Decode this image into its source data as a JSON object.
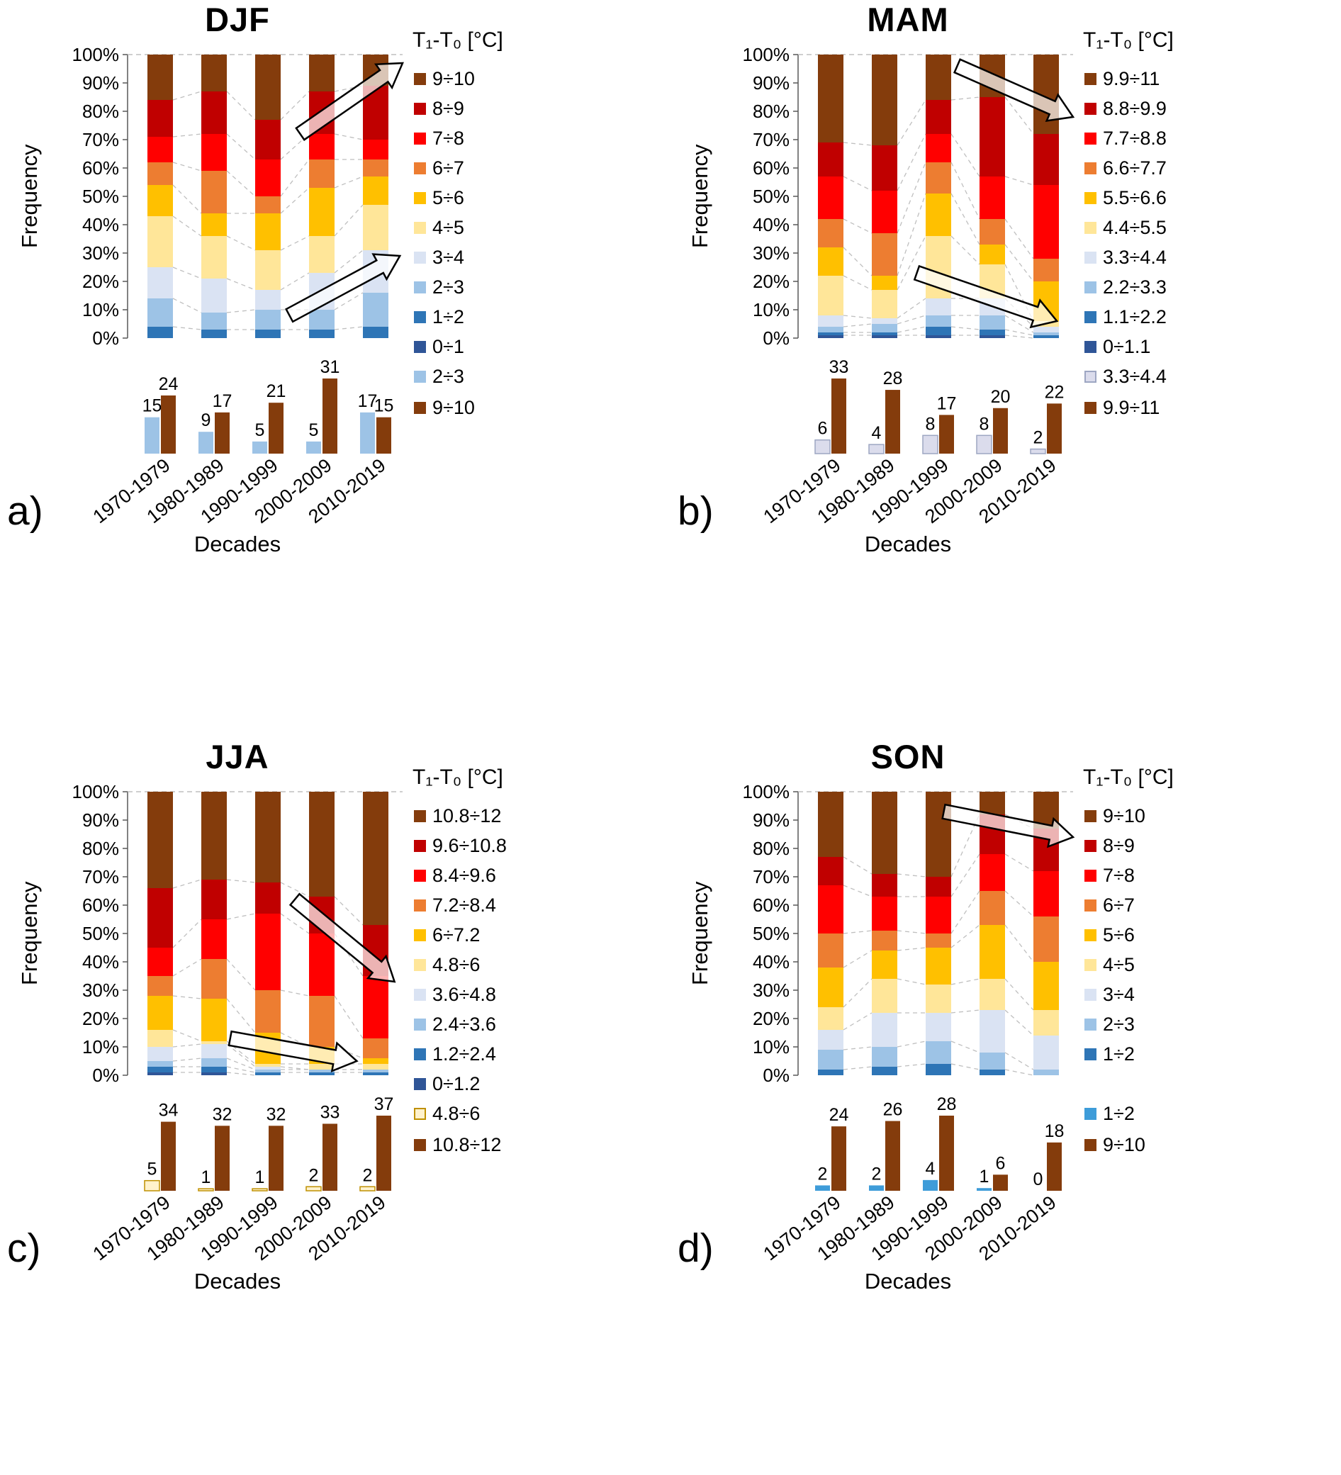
{
  "axis": {
    "y_ticks": [
      "0%",
      "10%",
      "20%",
      "30%",
      "40%",
      "50%",
      "60%",
      "70%",
      "80%",
      "90%",
      "100%"
    ]
  },
  "chart_data": [
    {
      "letter": "a)",
      "title": "DJF",
      "type": "stacked-bar-100",
      "legend_title": "T₁-T₀ [°C]",
      "xlabel": "Decades",
      "ylabel": "Frequency",
      "ylim": [
        0,
        100
      ],
      "grid": false,
      "legend_position": "right",
      "categories": [
        "1970-1979",
        "1980-1989",
        "1990-1999",
        "2000-2009",
        "2010-2019"
      ],
      "bins_bottom_to_top": [
        {
          "label": "0÷1",
          "color": "#2F5597"
        },
        {
          "label": "1÷2",
          "color": "#2E75B6"
        },
        {
          "label": "2÷3",
          "color": "#9DC3E6"
        },
        {
          "label": "3÷4",
          "color": "#DAE3F3"
        },
        {
          "label": "4÷5",
          "color": "#FFE699"
        },
        {
          "label": "5÷6",
          "color": "#FFC000"
        },
        {
          "label": "6÷7",
          "color": "#ED7D31"
        },
        {
          "label": "7÷8",
          "color": "#FF0000"
        },
        {
          "label": "8÷9",
          "color": "#C00000"
        },
        {
          "label": "9÷10",
          "color": "#843C0C"
        }
      ],
      "series_percent": [
        [
          0,
          4,
          10,
          11,
          18,
          11,
          8,
          9,
          13,
          16
        ],
        [
          0,
          3,
          6,
          12,
          15,
          8,
          15,
          13,
          15,
          13
        ],
        [
          0,
          3,
          7,
          7,
          14,
          13,
          6,
          13,
          14,
          23
        ],
        [
          0,
          3,
          7,
          13,
          13,
          17,
          10,
          9,
          15,
          13
        ],
        [
          0,
          4,
          12,
          15,
          16,
          10,
          6,
          7,
          19,
          11
        ]
      ],
      "counts_chart": {
        "type": "bar",
        "series": [
          {
            "label": "2÷3",
            "color": "#9DC3E6",
            "border": null,
            "values": [
              15,
              9,
              5,
              5,
              17
            ]
          },
          {
            "label": "9÷10",
            "color": "#843C0C",
            "border": null,
            "values": [
              24,
              17,
              21,
              31,
              15
            ]
          }
        ]
      },
      "arrows": [
        {
          "x1": 0.62,
          "y1": 72,
          "x2": 1.0,
          "y2": 97
        },
        {
          "x1": 0.58,
          "y1": 8,
          "x2": 0.99,
          "y2": 29
        }
      ]
    },
    {
      "letter": "b)",
      "title": "MAM",
      "type": "stacked-bar-100",
      "legend_title": "T₁-T₀ [°C]",
      "xlabel": "Decades",
      "ylabel": "Frequency",
      "ylim": [
        0,
        100
      ],
      "grid": false,
      "legend_position": "right",
      "categories": [
        "1970-1979",
        "1980-1989",
        "1990-1999",
        "2000-2009",
        "2010-2019"
      ],
      "bins_bottom_to_top": [
        {
          "label": "0÷1.1",
          "color": "#2F5597"
        },
        {
          "label": "1.1÷2.2",
          "color": "#2E75B6"
        },
        {
          "label": "2.2÷3.3",
          "color": "#9DC3E6"
        },
        {
          "label": "3.3÷4.4",
          "color": "#DAE3F3"
        },
        {
          "label": "4.4÷5.5",
          "color": "#FFE699"
        },
        {
          "label": "5.5÷6.6",
          "color": "#FFC000"
        },
        {
          "label": "6.6÷7.7",
          "color": "#ED7D31"
        },
        {
          "label": "7.7÷8.8",
          "color": "#FF0000"
        },
        {
          "label": "8.8÷9.9",
          "color": "#C00000"
        },
        {
          "label": "9.9÷11",
          "color": "#843C0C"
        }
      ],
      "series_percent": [
        [
          1,
          1,
          2,
          4,
          14,
          10,
          10,
          15,
          12,
          31
        ],
        [
          1,
          1,
          3,
          2,
          10,
          5,
          15,
          15,
          16,
          32
        ],
        [
          1,
          3,
          4,
          6,
          22,
          15,
          11,
          10,
          12,
          16
        ],
        [
          1,
          2,
          5,
          6,
          12,
          7,
          9,
          15,
          28,
          15
        ],
        [
          0,
          1,
          1,
          2,
          2,
          14,
          8,
          26,
          18,
          28
        ]
      ],
      "counts_chart": {
        "type": "bar",
        "series": [
          {
            "label": "3.3÷4.4",
            "color": "#DBDCEC",
            "border": "#9DA6C2",
            "values": [
              6,
              4,
              8,
              8,
              2
            ]
          },
          {
            "label": "9.9÷11",
            "color": "#843C0C",
            "border": null,
            "values": [
              33,
              28,
              17,
              20,
              22
            ]
          }
        ]
      },
      "arrows": [
        {
          "x1": 0.57,
          "y1": 96,
          "x2": 1.0,
          "y2": 78
        },
        {
          "x1": 0.42,
          "y1": 23,
          "x2": 0.94,
          "y2": 6
        }
      ]
    },
    {
      "letter": "c)",
      "title": "JJA",
      "type": "stacked-bar-100",
      "legend_title": "T₁-T₀ [°C]",
      "xlabel": "Decades",
      "ylabel": "Frequency",
      "ylim": [
        0,
        100
      ],
      "grid": false,
      "legend_position": "right",
      "categories": [
        "1970-1979",
        "1980-1989",
        "1990-1999",
        "2000-2009",
        "2010-2019"
      ],
      "bins_bottom_to_top": [
        {
          "label": "0÷1.2",
          "color": "#2F5597"
        },
        {
          "label": "1.2÷2.4",
          "color": "#2E75B6"
        },
        {
          "label": "2.4÷3.6",
          "color": "#9DC3E6"
        },
        {
          "label": "3.6÷4.8",
          "color": "#DAE3F3"
        },
        {
          "label": "4.8÷6",
          "color": "#FFE699"
        },
        {
          "label": "6÷7.2",
          "color": "#FFC000"
        },
        {
          "label": "7.2÷8.4",
          "color": "#ED7D31"
        },
        {
          "label": "8.4÷9.6",
          "color": "#FF0000"
        },
        {
          "label": "9.6÷10.8",
          "color": "#C00000"
        },
        {
          "label": "10.8÷12",
          "color": "#843C0C"
        }
      ],
      "series_percent": [
        [
          1,
          2,
          2,
          5,
          6,
          12,
          7,
          10,
          21,
          34
        ],
        [
          1,
          2,
          3,
          5,
          1,
          15,
          14,
          14,
          14,
          31
        ],
        [
          0,
          1,
          1,
          1,
          1,
          11,
          15,
          27,
          11,
          32
        ],
        [
          0,
          1,
          1,
          0,
          2,
          6,
          18,
          22,
          13,
          37
        ],
        [
          0,
          1,
          1,
          0,
          2,
          2,
          7,
          22,
          18,
          47
        ]
      ],
      "counts_chart": {
        "type": "bar",
        "series": [
          {
            "label": "4.8÷6",
            "color": "#FFF2CC",
            "border": "#BF9000",
            "values": [
              5,
              1,
              1,
              2,
              2
            ]
          },
          {
            "label": "10.8÷12",
            "color": "#843C0C",
            "border": null,
            "values": [
              34,
              32,
              32,
              33,
              37
            ]
          }
        ]
      },
      "arrows": [
        {
          "x1": 0.6,
          "y1": 62,
          "x2": 0.97,
          "y2": 33
        },
        {
          "x1": 0.36,
          "y1": 13,
          "x2": 0.83,
          "y2": 5
        }
      ]
    },
    {
      "letter": "d)",
      "title": "SON",
      "type": "stacked-bar-100",
      "legend_title": "T₁-T₀ [°C]",
      "xlabel": "Decades",
      "ylabel": "Frequency",
      "ylim": [
        0,
        100
      ],
      "grid": false,
      "legend_position": "right",
      "categories": [
        "1970-1979",
        "1980-1989",
        "1990-1999",
        "2000-2009",
        "2010-2019"
      ],
      "bins_bottom_to_top": [
        {
          "label": "1÷2",
          "color": "#2E75B6"
        },
        {
          "label": "2÷3",
          "color": "#9DC3E6"
        },
        {
          "label": "3÷4",
          "color": "#DAE3F3"
        },
        {
          "label": "4÷5",
          "color": "#FFE699"
        },
        {
          "label": "5÷6",
          "color": "#FFC000"
        },
        {
          "label": "6÷7",
          "color": "#ED7D31"
        },
        {
          "label": "7÷8",
          "color": "#FF0000"
        },
        {
          "label": "8÷9",
          "color": "#C00000"
        },
        {
          "label": "9÷10",
          "color": "#843C0C"
        }
      ],
      "series_percent": [
        [
          2,
          7,
          7,
          8,
          14,
          12,
          17,
          10,
          23
        ],
        [
          3,
          7,
          12,
          12,
          10,
          7,
          12,
          8,
          29
        ],
        [
          4,
          8,
          10,
          10,
          13,
          5,
          13,
          7,
          30
        ],
        [
          2,
          6,
          15,
          11,
          19,
          12,
          13,
          14,
          8
        ],
        [
          0,
          2,
          12,
          9,
          17,
          16,
          16,
          15,
          13
        ]
      ],
      "counts_chart": {
        "type": "bar",
        "series": [
          {
            "label": "1÷2",
            "color": "#3E9CD9",
            "border": null,
            "values": [
              2,
              2,
              4,
              1,
              0
            ]
          },
          {
            "label": "9÷10",
            "color": "#843C0C",
            "border": null,
            "values": [
              24,
              26,
              28,
              6,
              18
            ]
          }
        ]
      },
      "arrows": [
        {
          "x1": 0.52,
          "y1": 93,
          "x2": 1.0,
          "y2": 84
        }
      ]
    }
  ]
}
